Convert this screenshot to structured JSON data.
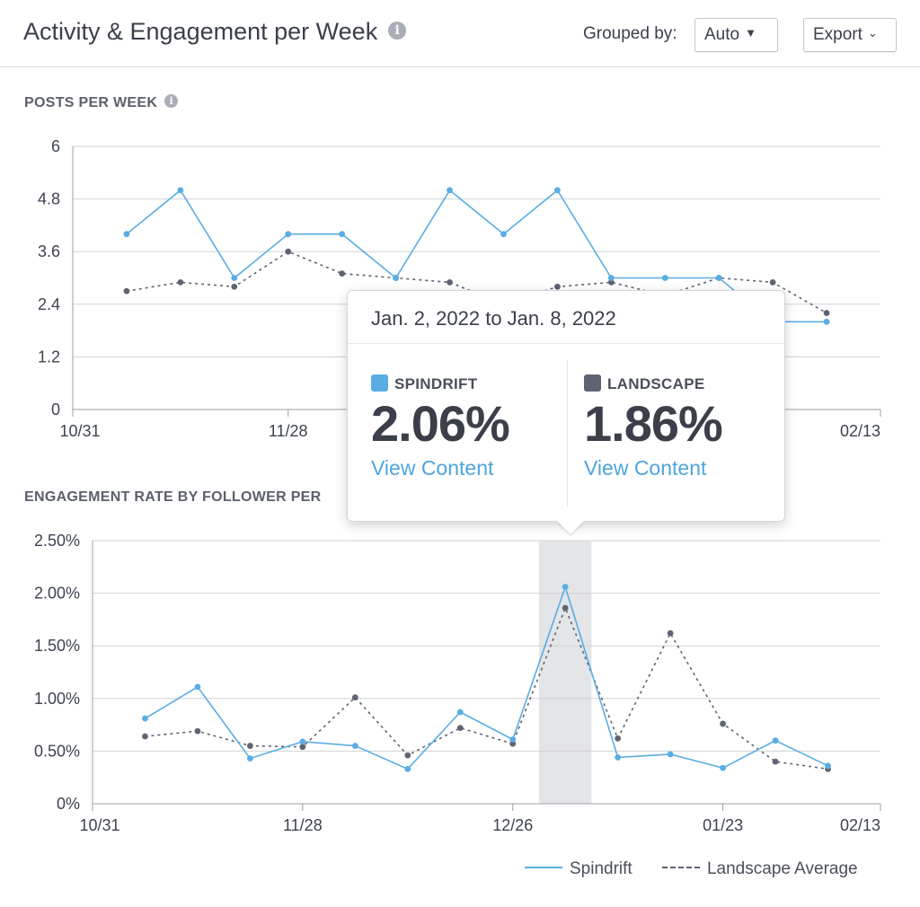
{
  "header": {
    "title": "Activity & Engagement per Week",
    "grouped_by_label": "Grouped by:",
    "grouped_by_value": "Auto",
    "export_label": "Export"
  },
  "sections": {
    "posts_label": "POSTS PER WEEK",
    "engagement_label": "ENGAGEMENT RATE BY FOLLOWER PER"
  },
  "legend": {
    "spindrift": "Spindrift",
    "landscape": "Landscape Average"
  },
  "colors": {
    "spindrift": "#5aade3",
    "landscape": "#5e6472",
    "highlight": "#e4e5e7",
    "grid": "#cfd2d6"
  },
  "tooltip": {
    "date_range": "Jan. 2, 2022 to Jan. 8, 2022",
    "series": [
      {
        "name": "SPINDRIFT",
        "value": "2.06%",
        "link": "View Content",
        "color": "#5aade3"
      },
      {
        "name": "LANDSCAPE",
        "value": "1.86%",
        "link": "View Content",
        "color": "#5e6472"
      }
    ]
  },
  "chart_data": [
    {
      "type": "line",
      "title": "POSTS PER WEEK",
      "x_tick_labels": [
        "10/31",
        "11/28",
        "02/13"
      ],
      "x_tick_weeks": [
        0,
        4,
        15
      ],
      "ylim": [
        0,
        6
      ],
      "y_ticks": [
        0,
        1.2,
        2.4,
        3.6,
        4.8,
        6
      ],
      "y_tick_labels": [
        "0",
        "1.2",
        "2.4",
        "3.6",
        "4.8",
        "6"
      ],
      "x_weeks": [
        1,
        2,
        3,
        4,
        5,
        6,
        7,
        8,
        9,
        10,
        11,
        12,
        13,
        14
      ],
      "series": [
        {
          "name": "Spindrift",
          "values": [
            4,
            5,
            3,
            4,
            4,
            3,
            5,
            4,
            5,
            3,
            3,
            3,
            2,
            2
          ]
        },
        {
          "name": "Landscape Average",
          "values": [
            2.7,
            2.9,
            2.8,
            3.6,
            3.1,
            3.0,
            2.9,
            2.4,
            2.8,
            2.9,
            2.6,
            3.0,
            2.9,
            2.2
          ]
        }
      ],
      "grid": true
    },
    {
      "type": "line",
      "title": "ENGAGEMENT RATE BY FOLLOWER PER",
      "x_tick_labels": [
        "10/31",
        "11/28",
        "12/26",
        "01/23",
        "02/13"
      ],
      "x_tick_weeks": [
        0,
        4,
        8,
        12,
        15
      ],
      "ylim": [
        0,
        2.5
      ],
      "y_ticks": [
        0,
        0.5,
        1.0,
        1.5,
        2.0,
        2.5
      ],
      "y_tick_labels": [
        "0%",
        "0.50%",
        "1.00%",
        "1.50%",
        "2.00%",
        "2.50%"
      ],
      "x_weeks": [
        1,
        2,
        3,
        4,
        5,
        6,
        7,
        8,
        9,
        10,
        11,
        12,
        13,
        14
      ],
      "series": [
        {
          "name": "Spindrift",
          "values": [
            0.81,
            1.11,
            0.43,
            0.59,
            0.55,
            0.33,
            0.87,
            0.61,
            2.06,
            0.44,
            0.47,
            0.34,
            0.6,
            0.36
          ]
        },
        {
          "name": "Landscape Average",
          "values": [
            0.64,
            0.69,
            0.55,
            0.54,
            1.01,
            0.46,
            0.72,
            0.57,
            1.86,
            0.62,
            1.62,
            0.76,
            0.4,
            0.33
          ]
        }
      ],
      "highlight_week": 9,
      "grid": true
    }
  ]
}
